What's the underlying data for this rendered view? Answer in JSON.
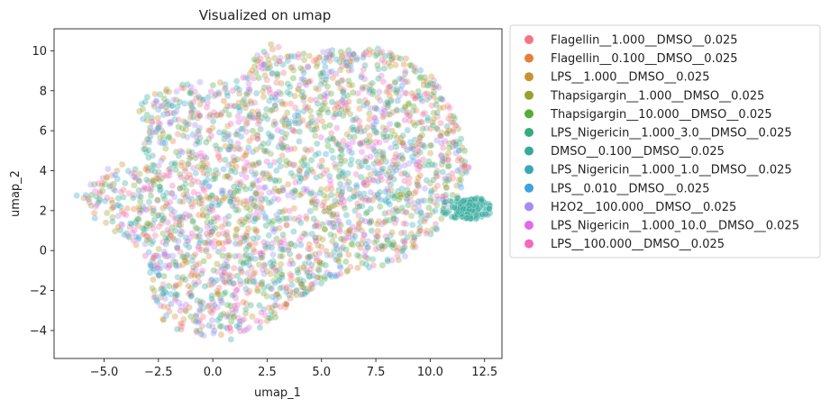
{
  "chart_data": {
    "type": "scatter",
    "title": "Visualized on umap",
    "xlabel": "umap_1",
    "ylabel": "umap_2",
    "xlim": [
      -7.3,
      13.3
    ],
    "ylim": [
      -5.4,
      11.1
    ],
    "xticks": [
      -5.0,
      -2.5,
      0.0,
      2.5,
      5.0,
      7.5,
      10.0,
      12.5
    ],
    "xtick_labels": [
      "−5.0",
      "−2.5",
      "0.0",
      "2.5",
      "5.0",
      "7.5",
      "10.0",
      "12.5"
    ],
    "yticks": [
      -4,
      -2,
      0,
      2,
      4,
      6,
      8,
      10
    ],
    "ytick_labels": [
      "−4",
      "−2",
      "0",
      "2",
      "4",
      "6",
      "8",
      "10"
    ],
    "grid": false,
    "legend_position": "outside-right-top",
    "point_alpha": 0.35,
    "series": [
      {
        "name": "Flagellin__1.000__DMSO__0.025",
        "color": "#f37583"
      },
      {
        "name": "Flagellin__0.100__DMSO__0.025",
        "color": "#e47f3c"
      },
      {
        "name": "LPS__1.000__DMSO__0.025",
        "color": "#c8932f"
      },
      {
        "name": "Thapsigargin__1.000__DMSO__0.025",
        "color": "#97a22d"
      },
      {
        "name": "Thapsigargin__10.000__DMSO__0.025",
        "color": "#55ad36"
      },
      {
        "name": "LPS_Nigericin__1.000_3.0__DMSO__0.025",
        "color": "#33ad7b"
      },
      {
        "name": "DMSO__0.100__DMSO__0.025",
        "color": "#35aa9d"
      },
      {
        "name": "LPS_Nigericin__1.000_1.0__DMSO__0.025",
        "color": "#38a8b6"
      },
      {
        "name": "LPS__0.010__DMSO__0.025",
        "color": "#3ba3e0"
      },
      {
        "name": "H2O2__100.000__DMSO__0.025",
        "color": "#a48cf4"
      },
      {
        "name": "LPS_Nigericin__1.000_10.0__DMSO__0.025",
        "color": "#e36ae6"
      },
      {
        "name": "LPS__100.000__DMSO__0.025",
        "color": "#f468be"
      }
    ],
    "cluster_outline": [
      [
        -6.4,
        2.7
      ],
      [
        -5.8,
        3.2
      ],
      [
        -4.7,
        4.2
      ],
      [
        -4.2,
        4.4
      ],
      [
        -3.5,
        4.1
      ],
      [
        -3.0,
        4.2
      ],
      [
        -3.5,
        6.6
      ],
      [
        -3.3,
        7.6
      ],
      [
        -2.4,
        8.2
      ],
      [
        -0.5,
        8.5
      ],
      [
        0.8,
        8.4
      ],
      [
        1.6,
        8.8
      ],
      [
        2.0,
        9.8
      ],
      [
        2.7,
        10.4
      ],
      [
        3.5,
        9.9
      ],
      [
        5.0,
        10.0
      ],
      [
        7.5,
        10.2
      ],
      [
        9.0,
        9.6
      ],
      [
        10.2,
        8.6
      ],
      [
        11.2,
        6.5
      ],
      [
        11.8,
        4.2
      ],
      [
        11.4,
        2.7
      ],
      [
        10.8,
        2.6
      ],
      [
        10.6,
        1.4
      ],
      [
        10.0,
        0.7
      ],
      [
        9.0,
        -0.5
      ],
      [
        7.0,
        -0.9
      ],
      [
        5.3,
        -1.4
      ],
      [
        3.9,
        -2.5
      ],
      [
        2.9,
        -3.4
      ],
      [
        2.2,
        -3.9
      ],
      [
        1.0,
        -4.5
      ],
      [
        -0.6,
        -4.3
      ],
      [
        -1.8,
        -4.2
      ],
      [
        -2.5,
        -3.3
      ],
      [
        -3.0,
        -1.2
      ],
      [
        -3.4,
        0.2
      ],
      [
        -4.2,
        0.6
      ],
      [
        -5.3,
        1.5
      ],
      [
        -6.2,
        2.3
      ]
    ],
    "dmso_tail_center": [
      12.0,
      2.1
    ]
  }
}
